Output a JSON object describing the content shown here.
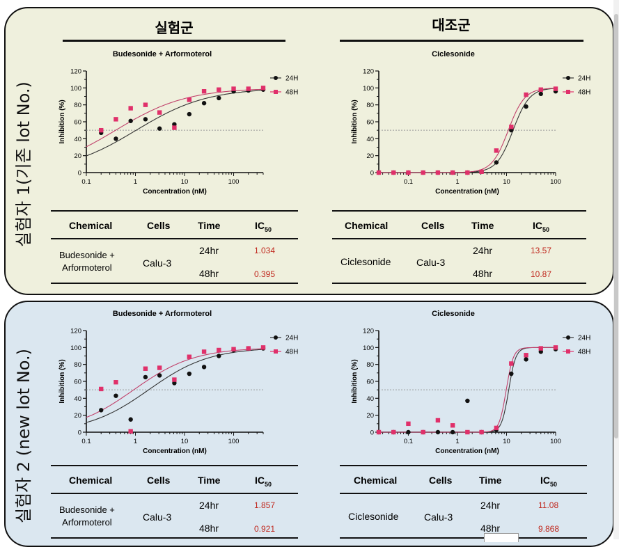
{
  "groups": {
    "experimental": "실험군",
    "control": "대조군"
  },
  "subjects": {
    "s1": "실험자 1(기존 lot No.)",
    "s2": "실험자 2 (new lot No.)"
  },
  "chart_common": {
    "xlabel": "Concentration (nM)",
    "ylabel": "Inhibition (%)",
    "yticks": [
      "0",
      "20",
      "40",
      "60",
      "80",
      "100",
      "120"
    ],
    "legend": [
      "24H",
      "48H"
    ],
    "colors": {
      "s24": "#111111",
      "s48": "#e0306a",
      "fit24": "#333333",
      "fit48": "#c0406a",
      "ref": "#9a9a9a"
    }
  },
  "table_headers": {
    "chemical": "Chemical",
    "cells": "Cells",
    "time": "Time",
    "ic": "IC",
    "ic_sub": "50"
  },
  "tables": {
    "t1": {
      "chemical_l1": "Budesonide +",
      "chemical_l2": "Arformoterol",
      "cells": "Calu-3",
      "t24": "24hr",
      "t48": "48hr",
      "ic24": "1.034",
      "ic48": "0.395"
    },
    "t2": {
      "chemical": "Ciclesonide",
      "cells": "Calu-3",
      "t24": "24hr",
      "t48": "48hr",
      "ic24": "13.57",
      "ic48": "10.87"
    },
    "t3": {
      "chemical_l1": "Budesonide +",
      "chemical_l2": "Arformoterol",
      "cells": "Calu-3",
      "t24": "24hr",
      "t48": "48hr",
      "ic24": "1.857",
      "ic48": "0.921"
    },
    "t4": {
      "chemical": "Ciclesonide",
      "cells": "Calu-3",
      "t24": "24hr",
      "t48": "48hr",
      "ic24": "11.08",
      "ic48": "9.868"
    }
  },
  "chart_data": [
    {
      "type": "scatter",
      "title": "Budesonide + Arformoterol",
      "xlabel": "Concentration (nM)",
      "ylabel": "Inhibition (%)",
      "xscale": "log",
      "xlim": [
        0.1,
        400
      ],
      "ylim": [
        0,
        120
      ],
      "xticks": [
        "0.1",
        "1",
        "10",
        "100"
      ],
      "legend_position": "top-right",
      "series": [
        {
          "name": "24H",
          "fit_ic50": 1.034,
          "fit_hill": 0.6,
          "points": [
            [
              0.2,
              47
            ],
            [
              0.4,
              40
            ],
            [
              0.8,
              61
            ],
            [
              1.6,
              63
            ],
            [
              3.1,
              52
            ],
            [
              6.2,
              57
            ],
            [
              12.5,
              69
            ],
            [
              25,
              82
            ],
            [
              50,
              88
            ],
            [
              100,
              96
            ],
            [
              200,
              97
            ],
            [
              400,
              98
            ]
          ]
        },
        {
          "name": "48H",
          "fit_ic50": 0.395,
          "fit_hill": 0.6,
          "points": [
            [
              0.2,
              50
            ],
            [
              0.4,
              63
            ],
            [
              0.8,
              76
            ],
            [
              1.6,
              80
            ],
            [
              3.1,
              71
            ],
            [
              6.2,
              53
            ],
            [
              12.5,
              86
            ],
            [
              25,
              96
            ],
            [
              50,
              98
            ],
            [
              100,
              99
            ],
            [
              200,
              99
            ],
            [
              400,
              100
            ]
          ]
        }
      ]
    },
    {
      "type": "scatter",
      "title": "Ciclesonide",
      "xlabel": "Concentration (nM)",
      "ylabel": "Inhibition (%)",
      "xscale": "log",
      "xlim": [
        0.025,
        100
      ],
      "ylim": [
        0,
        120
      ],
      "xticks": [
        "0.1",
        "1",
        "10",
        "100"
      ],
      "legend_position": "top-right",
      "series": [
        {
          "name": "24H",
          "fit_ic50": 13.57,
          "fit_hill": 2.6,
          "points": [
            [
              0.025,
              0
            ],
            [
              0.05,
              0
            ],
            [
              0.1,
              0
            ],
            [
              0.2,
              0
            ],
            [
              0.4,
              0
            ],
            [
              0.8,
              0
            ],
            [
              1.6,
              0
            ],
            [
              3.1,
              1
            ],
            [
              6.2,
              12
            ],
            [
              12.5,
              50
            ],
            [
              25,
              78
            ],
            [
              50,
              93
            ],
            [
              100,
              96
            ]
          ]
        },
        {
          "name": "48H",
          "fit_ic50": 10.87,
          "fit_hill": 2.6,
          "points": [
            [
              0.025,
              0
            ],
            [
              0.05,
              0
            ],
            [
              0.1,
              0
            ],
            [
              0.2,
              0
            ],
            [
              0.4,
              0
            ],
            [
              0.8,
              0
            ],
            [
              1.6,
              0
            ],
            [
              3.1,
              1
            ],
            [
              6.2,
              26
            ],
            [
              12.5,
              54
            ],
            [
              25,
              92
            ],
            [
              50,
              98
            ],
            [
              100,
              99
            ]
          ]
        }
      ]
    },
    {
      "type": "scatter",
      "title": "Budesonide + Arformoterol",
      "xlabel": "Concentration (nM)",
      "ylabel": "Inhibition (%)",
      "xscale": "log",
      "xlim": [
        0.1,
        400
      ],
      "ylim": [
        0,
        120
      ],
      "xticks": [
        "0.1",
        "1",
        "10",
        "100"
      ],
      "legend_position": "top-right",
      "series": [
        {
          "name": "24H",
          "fit_ic50": 1.857,
          "fit_hill": 0.7,
          "points": [
            [
              0.2,
              26
            ],
            [
              0.4,
              43
            ],
            [
              0.8,
              15
            ],
            [
              1.6,
              65
            ],
            [
              3.1,
              67
            ],
            [
              6.2,
              58
            ],
            [
              12.5,
              69
            ],
            [
              25,
              77
            ],
            [
              50,
              90
            ],
            [
              100,
              97
            ],
            [
              200,
              99
            ],
            [
              400,
              99
            ]
          ]
        },
        {
          "name": "48H",
          "fit_ic50": 0.921,
          "fit_hill": 0.7,
          "points": [
            [
              0.2,
              51
            ],
            [
              0.4,
              59
            ],
            [
              0.8,
              1
            ],
            [
              1.6,
              75
            ],
            [
              3.1,
              76
            ],
            [
              6.2,
              62
            ],
            [
              12.5,
              89
            ],
            [
              25,
              95
            ],
            [
              50,
              97
            ],
            [
              100,
              98
            ],
            [
              200,
              99
            ],
            [
              400,
              100
            ]
          ]
        }
      ]
    },
    {
      "type": "scatter",
      "title": "Ciclesonide",
      "xlabel": "Concentration (nM)",
      "ylabel": "Inhibition (%)",
      "xscale": "log",
      "xlim": [
        0.025,
        100
      ],
      "ylim": [
        0,
        120
      ],
      "xticks": [
        "0.1",
        "1",
        "10",
        "100"
      ],
      "legend_position": "top-right",
      "series": [
        {
          "name": "24H",
          "fit_ic50": 11.08,
          "fit_hill": 6,
          "points": [
            [
              0.025,
              0
            ],
            [
              0.05,
              0
            ],
            [
              0.1,
              0
            ],
            [
              0.2,
              0
            ],
            [
              0.4,
              0
            ],
            [
              0.8,
              0
            ],
            [
              1.6,
              37
            ],
            [
              3.1,
              0
            ],
            [
              6.2,
              3
            ],
            [
              12.5,
              69
            ],
            [
              25,
              86
            ],
            [
              50,
              95
            ],
            [
              100,
              98
            ]
          ]
        },
        {
          "name": "48H",
          "fit_ic50": 9.868,
          "fit_hill": 6,
          "points": [
            [
              0.025,
              0
            ],
            [
              0.05,
              0
            ],
            [
              0.1,
              10
            ],
            [
              0.2,
              0
            ],
            [
              0.4,
              14
            ],
            [
              0.8,
              8
            ],
            [
              1.6,
              0
            ],
            [
              3.1,
              0
            ],
            [
              6.2,
              5
            ],
            [
              12.5,
              81
            ],
            [
              25,
              91
            ],
            [
              50,
              99
            ],
            [
              100,
              100
            ]
          ]
        }
      ]
    }
  ]
}
